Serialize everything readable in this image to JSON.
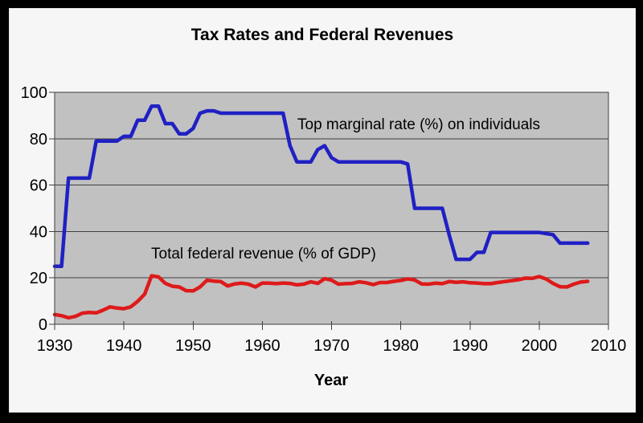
{
  "frame": {
    "border_color": "#000000",
    "background": "#f6f6f6"
  },
  "chart_data": {
    "type": "line",
    "title": "Tax Rates and Federal Revenues",
    "xlabel": "Year",
    "ylabel": "",
    "xlim": [
      1930,
      2010
    ],
    "ylim": [
      0,
      100
    ],
    "x_ticks": [
      1930,
      1940,
      1950,
      1960,
      1970,
      1980,
      1990,
      2000,
      2010
    ],
    "y_ticks": [
      0,
      20,
      40,
      60,
      80,
      100
    ],
    "grid": "horizontal",
    "grid_color": "#3f3f3f",
    "plot_background": "#c1c1c1",
    "legend_position": "inline-annotations",
    "series": [
      {
        "name": "Top marginal rate (%) on individuals",
        "color": "#2020c4",
        "x": [
          1930,
          1931,
          1932,
          1933,
          1934,
          1935,
          1936,
          1937,
          1938,
          1939,
          1940,
          1941,
          1942,
          1943,
          1944,
          1945,
          1946,
          1947,
          1948,
          1949,
          1950,
          1951,
          1952,
          1953,
          1954,
          1955,
          1956,
          1957,
          1958,
          1959,
          1960,
          1961,
          1962,
          1963,
          1964,
          1965,
          1966,
          1967,
          1968,
          1969,
          1970,
          1971,
          1972,
          1973,
          1974,
          1975,
          1976,
          1977,
          1978,
          1979,
          1980,
          1981,
          1982,
          1983,
          1984,
          1985,
          1986,
          1987,
          1988,
          1989,
          1990,
          1991,
          1992,
          1993,
          1994,
          1995,
          1996,
          1997,
          1998,
          1999,
          2000,
          2001,
          2002,
          2003,
          2004,
          2005,
          2006,
          2007
        ],
        "values": [
          25,
          25,
          63,
          63,
          63,
          63,
          79,
          79,
          79,
          79,
          81,
          81,
          88,
          88,
          94,
          94,
          86.5,
          86.5,
          82.1,
          82.1,
          84.4,
          91,
          92,
          92,
          91,
          91,
          91,
          91,
          91,
          91,
          91,
          91,
          91,
          91,
          77,
          70,
          70,
          70,
          75.3,
          77,
          71.8,
          70,
          70,
          70,
          70,
          70,
          70,
          70,
          70,
          70,
          70,
          69.1,
          50,
          50,
          50,
          50,
          50,
          38.5,
          28,
          28,
          28,
          31,
          31,
          39.6,
          39.6,
          39.6,
          39.6,
          39.6,
          39.6,
          39.6,
          39.6,
          39.1,
          38.6,
          35,
          35,
          35,
          35,
          35
        ]
      },
      {
        "name": "Total federal revenue (% of GDP)",
        "color": "#de1a1a",
        "x": [
          1930,
          1931,
          1932,
          1933,
          1934,
          1935,
          1936,
          1937,
          1938,
          1939,
          1940,
          1941,
          1942,
          1943,
          1944,
          1945,
          1946,
          1947,
          1948,
          1949,
          1950,
          1951,
          1952,
          1953,
          1954,
          1955,
          1956,
          1957,
          1958,
          1959,
          1960,
          1961,
          1962,
          1963,
          1964,
          1965,
          1966,
          1967,
          1968,
          1969,
          1970,
          1971,
          1972,
          1973,
          1974,
          1975,
          1976,
          1977,
          1978,
          1979,
          1980,
          1981,
          1982,
          1983,
          1984,
          1985,
          1986,
          1987,
          1988,
          1989,
          1990,
          1991,
          1992,
          1993,
          1994,
          1995,
          1996,
          1997,
          1998,
          1999,
          2000,
          2001,
          2002,
          2003,
          2004,
          2005,
          2006,
          2007
        ],
        "values": [
          4.2,
          3.7,
          2.8,
          3.4,
          4.8,
          5.1,
          4.9,
          6.1,
          7.5,
          7.0,
          6.7,
          7.5,
          9.9,
          13.0,
          20.9,
          20.4,
          17.6,
          16.4,
          16.1,
          14.5,
          14.4,
          16.1,
          19.0,
          18.6,
          18.4,
          16.5,
          17.4,
          17.7,
          17.3,
          16.1,
          17.8,
          17.7,
          17.5,
          17.8,
          17.6,
          17.0,
          17.3,
          18.3,
          17.6,
          19.7,
          19.0,
          17.3,
          17.5,
          17.6,
          18.3,
          17.9,
          17.1,
          18.0,
          18.0,
          18.5,
          18.9,
          19.6,
          19.1,
          17.4,
          17.3,
          17.7,
          17.5,
          18.4,
          18.1,
          18.3,
          17.9,
          17.8,
          17.5,
          17.5,
          18.0,
          18.4,
          18.8,
          19.2,
          19.9,
          19.8,
          20.6,
          19.5,
          17.6,
          16.2,
          16.1,
          17.3,
          18.2,
          18.5
        ]
      }
    ]
  }
}
